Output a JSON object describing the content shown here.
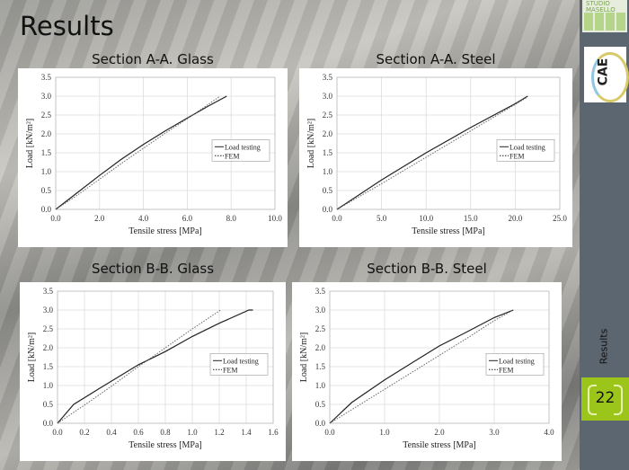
{
  "slide": {
    "title": "Results",
    "side_label": "Results",
    "page_number": "22"
  },
  "logos": {
    "studio": "STUDIO MASELLO STRUTTURE",
    "cae": "CAE"
  },
  "colors": {
    "sidebar": "#5b6670",
    "accent": "#9cc51c"
  },
  "chart_data": [
    {
      "type": "line",
      "title": "Section A-A. Glass",
      "xlabel": "Tensile stress [MPa]",
      "ylabel": "Load [kN/m²]",
      "xlim": [
        0,
        10
      ],
      "ylim": [
        0,
        3.5
      ],
      "xticks": [
        "0.0",
        "2.0",
        "4.0",
        "6.0",
        "8.0",
        "10.0"
      ],
      "yticks": [
        "0.0",
        "0.5",
        "1.0",
        "1.5",
        "2.0",
        "2.5",
        "3.0",
        "3.5"
      ],
      "grid": true,
      "legend": "right",
      "series": [
        {
          "name": "Load testing",
          "style": "solid",
          "x": [
            0,
            1,
            2,
            3,
            4,
            5,
            6,
            7,
            7.8
          ],
          "y": [
            0,
            0.45,
            0.9,
            1.33,
            1.72,
            2.08,
            2.42,
            2.75,
            3.0
          ]
        },
        {
          "name": "FEM",
          "style": "dotted",
          "x": [
            0,
            1,
            2,
            3,
            4,
            5,
            6,
            7.5
          ],
          "y": [
            0,
            0.38,
            0.8,
            1.22,
            1.62,
            2.02,
            2.4,
            3.0
          ]
        }
      ]
    },
    {
      "type": "line",
      "title": "Section A-A. Steel",
      "xlabel": "Tensile stress [MPa]",
      "ylabel": "Load [kN/m²]",
      "xlim": [
        0,
        25
      ],
      "ylim": [
        0,
        3.5
      ],
      "xticks": [
        "0.0",
        "5.0",
        "10.0",
        "15.0",
        "20.0",
        "25.0"
      ],
      "yticks": [
        "0.0",
        "0.5",
        "1.0",
        "1.5",
        "2.0",
        "2.5",
        "3.0",
        "3.5"
      ],
      "grid": true,
      "legend": "right",
      "series": [
        {
          "name": "Load testing",
          "style": "solid",
          "x": [
            0,
            5,
            10,
            15,
            20,
            21.4
          ],
          "y": [
            0,
            0.78,
            1.5,
            2.17,
            2.8,
            3.0
          ]
        },
        {
          "name": "FEM",
          "style": "dotted",
          "x": [
            0,
            5,
            10,
            15,
            20,
            21.2
          ],
          "y": [
            0,
            0.68,
            1.38,
            2.08,
            2.78,
            2.95
          ]
        }
      ]
    },
    {
      "type": "line",
      "title": "Section B-B. Glass",
      "xlabel": "Tensile stress [MPa]",
      "ylabel": "Load [kN/m²]",
      "xlim": [
        0,
        1.6
      ],
      "ylim": [
        0,
        3.5
      ],
      "xticks": [
        "0.0",
        "0.2",
        "0.4",
        "0.6",
        "0.8",
        "1.0",
        "1.2",
        "1.4",
        "1.6"
      ],
      "yticks": [
        "0.0",
        "0.5",
        "1.0",
        "1.5",
        "2.0",
        "2.5",
        "3.0",
        "3.5"
      ],
      "grid": true,
      "legend": "right",
      "series": [
        {
          "name": "Load testing",
          "style": "solid",
          "x": [
            0,
            0.12,
            0.3,
            0.6,
            0.8,
            1.0,
            1.2,
            1.42,
            1.45
          ],
          "y": [
            0,
            0.5,
            0.9,
            1.55,
            1.9,
            2.3,
            2.65,
            3.0,
            3.0
          ]
        },
        {
          "name": "FEM",
          "style": "dotted",
          "x": [
            0,
            0.2,
            0.4,
            0.6,
            0.8,
            1.0,
            1.21
          ],
          "y": [
            0,
            0.48,
            0.98,
            1.5,
            2.0,
            2.5,
            3.0
          ]
        }
      ]
    },
    {
      "type": "line",
      "title": "Section B-B. Steel",
      "xlabel": "Tensile stress [MPa]",
      "ylabel": "Load [kN/m²]",
      "xlim": [
        0,
        4
      ],
      "ylim": [
        0,
        3.5
      ],
      "xticks": [
        "0.0",
        "1.0",
        "2.0",
        "3.0",
        "4.0"
      ],
      "yticks": [
        "0.0",
        "0.5",
        "1.0",
        "1.5",
        "2.0",
        "2.5",
        "3.0",
        "3.5"
      ],
      "grid": true,
      "legend": "right",
      "series": [
        {
          "name": "Load testing",
          "style": "solid",
          "x": [
            0,
            0.4,
            1,
            1.5,
            2,
            2.5,
            3,
            3.35
          ],
          "y": [
            0,
            0.55,
            1.15,
            1.6,
            2.05,
            2.42,
            2.8,
            3.0
          ]
        },
        {
          "name": "FEM",
          "style": "dotted",
          "x": [
            0,
            0.5,
            1,
            1.5,
            2,
            2.5,
            3,
            3.35
          ],
          "y": [
            0,
            0.45,
            0.9,
            1.35,
            1.8,
            2.25,
            2.72,
            3.0
          ]
        }
      ]
    }
  ]
}
